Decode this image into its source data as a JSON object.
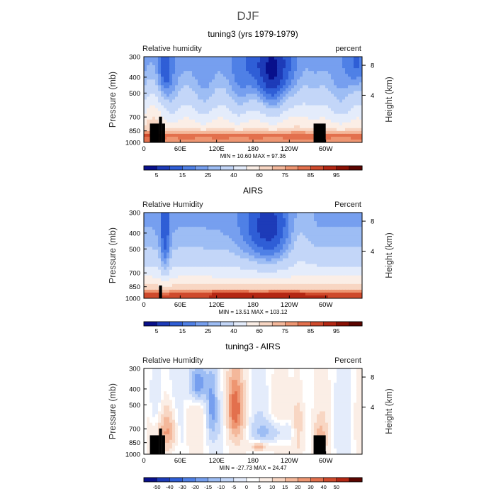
{
  "page": {
    "title": "DJF"
  },
  "colors": {
    "rh_scale": [
      "#08108c",
      "#1d3bb8",
      "#2f5ed6",
      "#4f80e6",
      "#769fef",
      "#9dbdf4",
      "#c3d6f8",
      "#e4ecfb",
      "#fbeee6",
      "#f8d6c3",
      "#f4b89b",
      "#ee9672",
      "#e3704d",
      "#cf4a2c",
      "#b42713",
      "#8a1003",
      "#5c0500"
    ],
    "diff_scale": [
      "#08108c",
      "#1d3bb8",
      "#2f5ed6",
      "#4f80e6",
      "#769fef",
      "#9dbdf4",
      "#c3d6f8",
      "#e4ecfb",
      "#ffffff",
      "#fbeee6",
      "#f8d6c3",
      "#f4b89b",
      "#ee9672",
      "#e3704d",
      "#cf4a2c",
      "#b42713",
      "#5c0500"
    ],
    "topo": "#000000"
  },
  "chart_data": [
    {
      "type": "heatmap",
      "title": "tuning3 (yrs 1979-1979)",
      "left_label": "Relative humidity",
      "right_label": "percent",
      "ylabel": "Pressure (mb)",
      "ylabel_right": "Height (km)",
      "x_ticks": [
        "0",
        "60E",
        "120E",
        "180",
        "120W",
        "60W"
      ],
      "y_ticks": [
        "300",
        "400",
        "500",
        "700",
        "850",
        "1000"
      ],
      "y_ticks_right": [
        "8",
        "4"
      ],
      "stats": "MIN =    10.60   MAX =    97.36",
      "min": 10.6,
      "max": 97.36,
      "colorbar_labels": [
        "5",
        "15",
        "25",
        "40",
        "60",
        "75",
        "85",
        "95"
      ],
      "field": "model"
    },
    {
      "type": "heatmap",
      "title": "AIRS",
      "left_label": "Relative Humidity",
      "right_label": "Percent",
      "ylabel": "Pressure (mb)",
      "ylabel_right": "Height (km)",
      "x_ticks": [
        "0",
        "60E",
        "120E",
        "180",
        "120W",
        "60W"
      ],
      "y_ticks": [
        "300",
        "400",
        "500",
        "700",
        "850",
        "1000"
      ],
      "y_ticks_right": [
        "8",
        "4"
      ],
      "stats": "MIN =    13.51   MAX =   103.12",
      "min": 13.51,
      "max": 103.12,
      "colorbar_labels": [
        "5",
        "15",
        "25",
        "40",
        "60",
        "75",
        "85",
        "95"
      ],
      "field": "obs"
    },
    {
      "type": "heatmap",
      "title": "tuning3 - AIRS",
      "left_label": "Relative Humidity",
      "right_label": "Percent",
      "ylabel": "Pressure (mb)",
      "ylabel_right": "Height (km)",
      "x_ticks": [
        "0",
        "60E",
        "120E",
        "180",
        "120W",
        "60W"
      ],
      "y_ticks": [
        "300",
        "400",
        "500",
        "700",
        "850",
        "1000"
      ],
      "y_ticks_right": [
        "8",
        "4"
      ],
      "stats": "MIN =   -27.73   MAX =    24.47",
      "min": -27.73,
      "max": 24.47,
      "colorbar_labels": [
        "-50",
        "-40",
        "-30",
        "-20",
        "-15",
        "-10",
        "-5",
        "0",
        "5",
        "10",
        "15",
        "20",
        "30",
        "40",
        "50"
      ],
      "field": "diff"
    }
  ]
}
